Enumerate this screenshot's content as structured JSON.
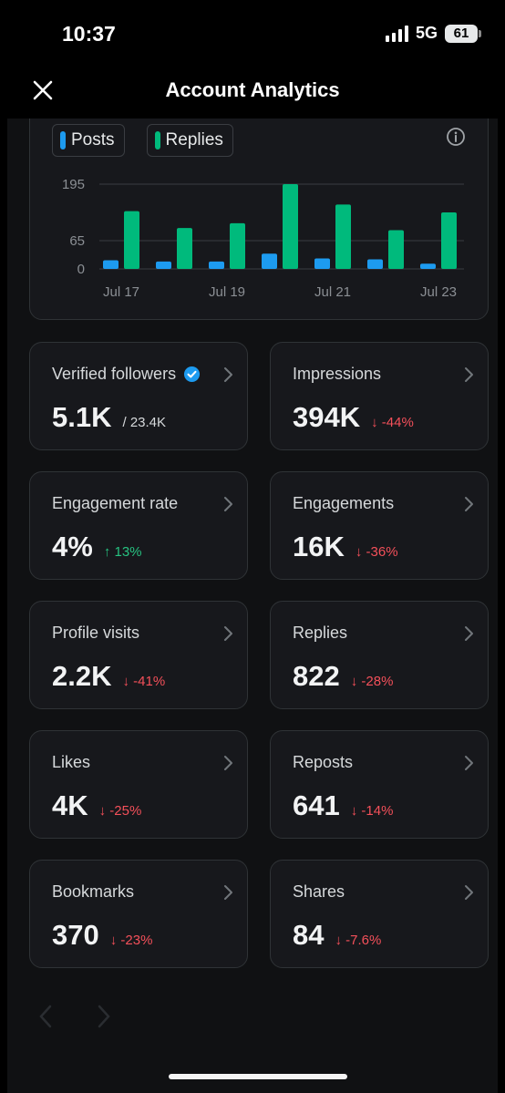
{
  "status_bar": {
    "time": "10:37",
    "network": "5G",
    "battery": "61"
  },
  "header": {
    "title": "Account Analytics"
  },
  "legend": [
    {
      "label": "Posts",
      "color": "#1d9bf0"
    },
    {
      "label": "Replies",
      "color": "#00ba7c"
    }
  ],
  "chart_data": {
    "type": "bar",
    "categories": [
      "Jul 17",
      "Jul 18",
      "Jul 19",
      "Jul 20",
      "Jul 21",
      "Jul 22",
      "Jul 23"
    ],
    "x_tick_labels": [
      "Jul 17",
      "Jul 19",
      "Jul 21",
      "Jul 23"
    ],
    "y_ticks": [
      0,
      65,
      195
    ],
    "ylim": [
      0,
      195
    ],
    "grid": true,
    "series": [
      {
        "name": "Posts",
        "color": "#1d9bf0",
        "values": [
          20,
          17,
          17,
          35,
          24,
          22,
          12
        ]
      },
      {
        "name": "Replies",
        "color": "#00ba7c",
        "values": [
          133,
          94,
          105,
          195,
          148,
          89,
          130
        ]
      }
    ]
  },
  "stats": [
    {
      "label": "Verified followers",
      "value": "5.1K",
      "sub": "/ 23.4K",
      "verified": true
    },
    {
      "label": "Impressions",
      "value": "394K",
      "delta": "↓ -44%",
      "direction": "down"
    },
    {
      "label": "Engagement rate",
      "value": "4%",
      "delta": "↑ 13%",
      "direction": "up"
    },
    {
      "label": "Engagements",
      "value": "16K",
      "delta": "↓ -36%",
      "direction": "down"
    },
    {
      "label": "Profile visits",
      "value": "2.2K",
      "delta": "↓ -41%",
      "direction": "down"
    },
    {
      "label": "Replies",
      "value": "822",
      "delta": "↓ -28%",
      "direction": "down"
    },
    {
      "label": "Likes",
      "value": "4K",
      "delta": "↓ -25%",
      "direction": "down"
    },
    {
      "label": "Reposts",
      "value": "641",
      "delta": "↓ -14%",
      "direction": "down"
    },
    {
      "label": "Bookmarks",
      "value": "370",
      "delta": "↓ -23%",
      "direction": "down"
    },
    {
      "label": "Shares",
      "value": "84",
      "delta": "↓ -7.6%",
      "direction": "down"
    }
  ],
  "icons": {
    "close": "close-icon",
    "info": "info-icon",
    "chevron": "chevron-right-icon",
    "verified": "verified-badge-icon",
    "prev": "chevron-left-icon",
    "next": "chevron-right-icon"
  }
}
